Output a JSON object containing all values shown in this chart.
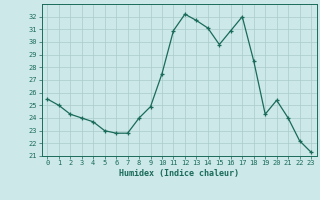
{
  "x": [
    0,
    1,
    2,
    3,
    4,
    5,
    6,
    7,
    8,
    9,
    10,
    11,
    12,
    13,
    14,
    15,
    16,
    17,
    18,
    19,
    20,
    21,
    22,
    23
  ],
  "y": [
    25.5,
    25.0,
    24.3,
    24.0,
    23.7,
    23.0,
    22.8,
    22.8,
    24.0,
    24.9,
    27.5,
    30.9,
    32.2,
    31.7,
    31.1,
    29.8,
    30.9,
    32.0,
    28.5,
    24.3,
    25.4,
    24.0,
    22.2,
    21.3
  ],
  "xlabel": "Humidex (Indice chaleur)",
  "ylim": [
    21,
    33
  ],
  "yticks": [
    21,
    22,
    23,
    24,
    25,
    26,
    27,
    28,
    29,
    30,
    31,
    32
  ],
  "xticks": [
    0,
    1,
    2,
    3,
    4,
    5,
    6,
    7,
    8,
    9,
    10,
    11,
    12,
    13,
    14,
    15,
    16,
    17,
    18,
    19,
    20,
    21,
    22,
    23
  ],
  "line_color": "#1a6b5a",
  "marker": "+",
  "bg_color": "#cce8e8",
  "grid_color": "#aacccc",
  "tick_color": "#1a6b5a",
  "label_color": "#1a6b5a"
}
